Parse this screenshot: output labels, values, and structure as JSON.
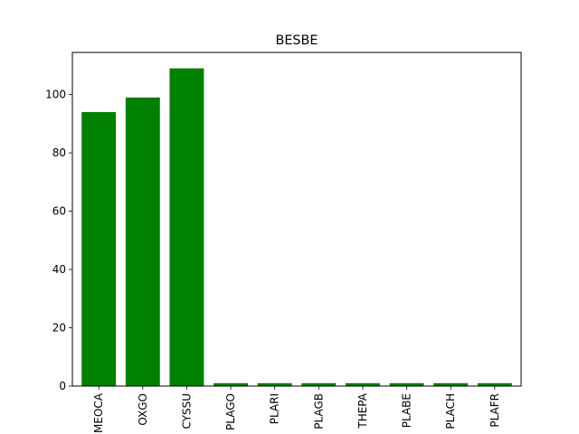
{
  "chart_data": {
    "type": "bar",
    "title": "BESBE",
    "xlabel": "",
    "ylabel": "",
    "categories": [
      "MEOCA",
      "OXGO",
      "CYSSU",
      "PLAGO",
      "PLARI",
      "PLAGB",
      "THEPA",
      "PLABE",
      "PLACH",
      "PLAFR"
    ],
    "values": [
      94,
      99,
      109,
      1,
      1,
      1,
      1,
      1,
      1,
      1
    ],
    "ylim": [
      0,
      114.45
    ],
    "yticks": [
      0,
      20,
      40,
      60,
      80,
      100
    ],
    "bar_color": "#008000",
    "grid": false,
    "legend": "none"
  }
}
